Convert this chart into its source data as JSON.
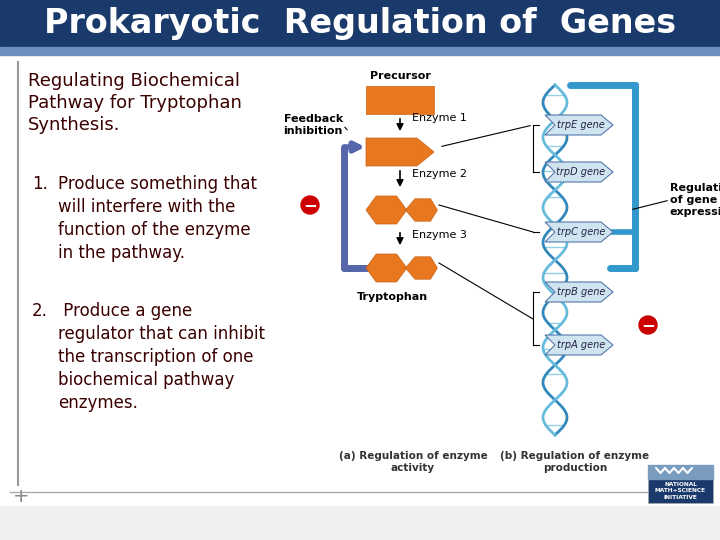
{
  "title": "Prokaryotic  Regulation of  Genes",
  "title_bg": "#1a3a6b",
  "title_fg": "#ffffff",
  "title_fontsize": 24,
  "body_bg": "#f0f0f0",
  "left_border_color": "#999999",
  "subtitle": "Regulating Biochemical\nPathway for Tryptophan\nSynthesis.",
  "subtitle_fontsize": 13,
  "subtitle_color": "#3a0000",
  "item1_num": "1.",
  "item1_text": "Produce something that\nwill interfere with the\nfunction of the enzyme\nin the pathway.",
  "item2_num": "2.",
  "item2_text": " Produce a gene\nregulator that can inhibit\nthe transcription of one\nbiochemical pathway\nenzymes.",
  "item_fontsize": 12,
  "item_color": "#3a0000",
  "bottom_line_color": "#aaaaaa",
  "plus_color": "#888888",
  "header_stripe_color": "#6a8fbc",
  "orange_color": "#e87820",
  "blue_feedback_color": "#5566aa",
  "blue_reg_color": "#3399cc",
  "red_minus_color": "#cc0000",
  "dark_blue_color": "#1a3a6b",
  "dna_helix_color": "#66bbdd",
  "dna_helix_color2": "#3388bb",
  "gene_box_color": "#d0e4f0",
  "gene_box_border": "#5577aa",
  "label_precursor": "Precursor",
  "label_feedback": "Feedback\ninhibition",
  "label_enzyme1": "Enzyme 1",
  "label_enzyme2": "Enzyme 2",
  "label_enzyme3": "Enzyme 3",
  "label_tryptophan": "Tryptophan",
  "label_trpE": "trpE gene",
  "label_trpD": "trpD gene",
  "label_trpC": "trpC gene",
  "label_trpB": "trpB gene",
  "label_trpA": "trpA gene",
  "label_reg": "Regulation\nof gene\nexpression",
  "label_a": "(a) Regulation of enzyme\nactivity",
  "label_b": "(b) Regulation of enzyme\nproduction",
  "nmsi_bg": "#1a3a6b",
  "nmsi_stripe": "#7a9cbf",
  "nmsi_text": "NATIONAL\nMATH+SCIENCE\nINITIATIVE"
}
